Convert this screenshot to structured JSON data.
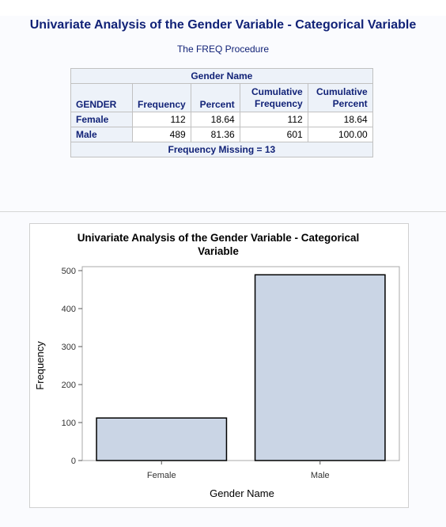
{
  "header": {
    "main_title": "Univariate Analysis of the Gender Variable - Categorical Variable",
    "procedure": "The FREQ Procedure"
  },
  "freq_table": {
    "title": "Gender Name",
    "columns": [
      "GENDER",
      "Frequency",
      "Percent",
      "Cumulative Frequency",
      "Cumulative Percent"
    ],
    "col_lines": {
      "cum_freq_line1": "Cumulative",
      "cum_freq_line2": "Frequency",
      "cum_pct_line1": "Cumulative",
      "cum_pct_line2": "Percent"
    },
    "rows": [
      {
        "label": "Female",
        "frequency": "112",
        "percent": "18.64",
        "cum_frequency": "112",
        "cum_percent": "18.64"
      },
      {
        "label": "Male",
        "frequency": "489",
        "percent": "81.36",
        "cum_frequency": "601",
        "cum_percent": "100.00"
      }
    ],
    "footer": "Frequency Missing = 13"
  },
  "chart_data": {
    "type": "bar",
    "title": "Univariate Analysis of the Gender Variable - Categorical Variable",
    "title_lines": [
      "Univariate Analysis of the Gender Variable - Categorical",
      "Variable"
    ],
    "categories": [
      "Female",
      "Male"
    ],
    "values": [
      112,
      489
    ],
    "xlabel": "Gender Name",
    "ylabel": "Frequency",
    "ylim": [
      0,
      500
    ],
    "yticks": [
      0,
      100,
      200,
      300,
      400,
      500
    ],
    "grid": false,
    "bar_fill": "#cad5e5",
    "bar_stroke": "#000000"
  }
}
